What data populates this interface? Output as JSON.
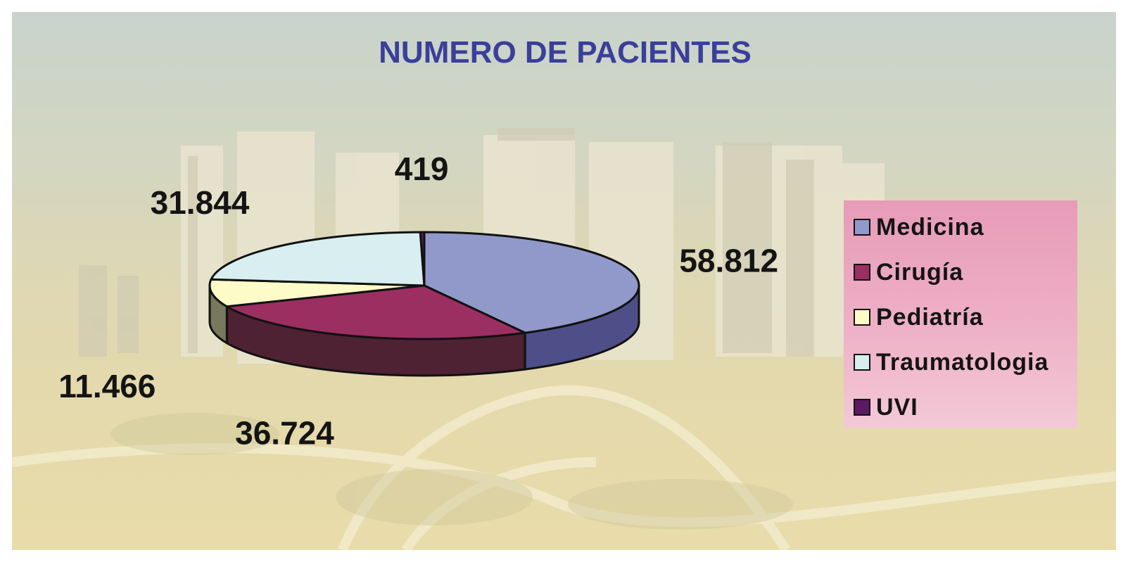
{
  "chart_data": {
    "type": "pie",
    "title": "NUMERO DE PACIENTES",
    "categories": [
      "Medicina",
      "Cirugía",
      "Pediatría",
      "Traumatologia",
      "UVI"
    ],
    "values": [
      58812,
      36724,
      11466,
      31844,
      419
    ],
    "value_labels": [
      "58.812",
      "36.724",
      "11.466",
      "31.844",
      "419"
    ],
    "colors": [
      "#9199ca",
      "#9b2f62",
      "#fdfcc8",
      "#d8eef1",
      "#5c1a63"
    ],
    "side_colors": [
      "#4e4e88",
      "#4e2133",
      "#78785c",
      "#6e7b7d",
      "#2e0d33"
    ],
    "style": "3d-exploded-none",
    "legend_position": "right"
  }
}
